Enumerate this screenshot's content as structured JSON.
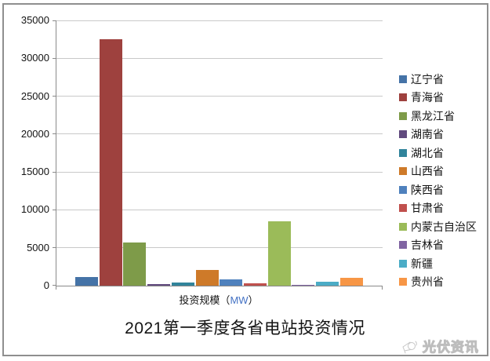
{
  "window": {
    "background": "#FFFFFF",
    "border_color": "#8F8F8F"
  },
  "chart_data": {
    "type": "bar",
    "title": "2021第一季度各省电站投资情况",
    "xlabel": "投资规模（MW）",
    "xlabel_prefix": "投资规模（",
    "xlabel_unit": "MW",
    "xlabel_suffix": "）",
    "xlabel_unit_color": "#4472C4",
    "ylabel": "",
    "ylim": [
      0,
      35000
    ],
    "yticks": [
      0,
      5000,
      10000,
      15000,
      20000,
      25000,
      30000,
      35000
    ],
    "grid": true,
    "gridline_color": "#C9C9C9",
    "axis_color": "#8A8A8A",
    "legend_position": "right",
    "series": [
      {
        "name": "辽宁省",
        "value": 1100,
        "color": "#4573A7"
      },
      {
        "name": "青海省",
        "value": 32500,
        "color": "#9E413E"
      },
      {
        "name": "黑龙江省",
        "value": 5700,
        "color": "#7E9B49"
      },
      {
        "name": "湖南省",
        "value": 200,
        "color": "#614A7E"
      },
      {
        "name": "湖北省",
        "value": 450,
        "color": "#31849B"
      },
      {
        "name": "山西省",
        "value": 2100,
        "color": "#CE7A29"
      },
      {
        "name": "陕西省",
        "value": 800,
        "color": "#4F81BD"
      },
      {
        "name": "甘肃省",
        "value": 300,
        "color": "#C0504D"
      },
      {
        "name": "内蒙古自治区",
        "value": 8500,
        "color": "#9BBB59"
      },
      {
        "name": "吉林省",
        "value": 150,
        "color": "#8064A2"
      },
      {
        "name": "新疆",
        "value": 500,
        "color": "#4BACC6"
      },
      {
        "name": "贵州省",
        "value": 1000,
        "color": "#F79646"
      }
    ]
  },
  "watermark": {
    "text": "光伏资讯",
    "icon": "megaphone-icon"
  }
}
